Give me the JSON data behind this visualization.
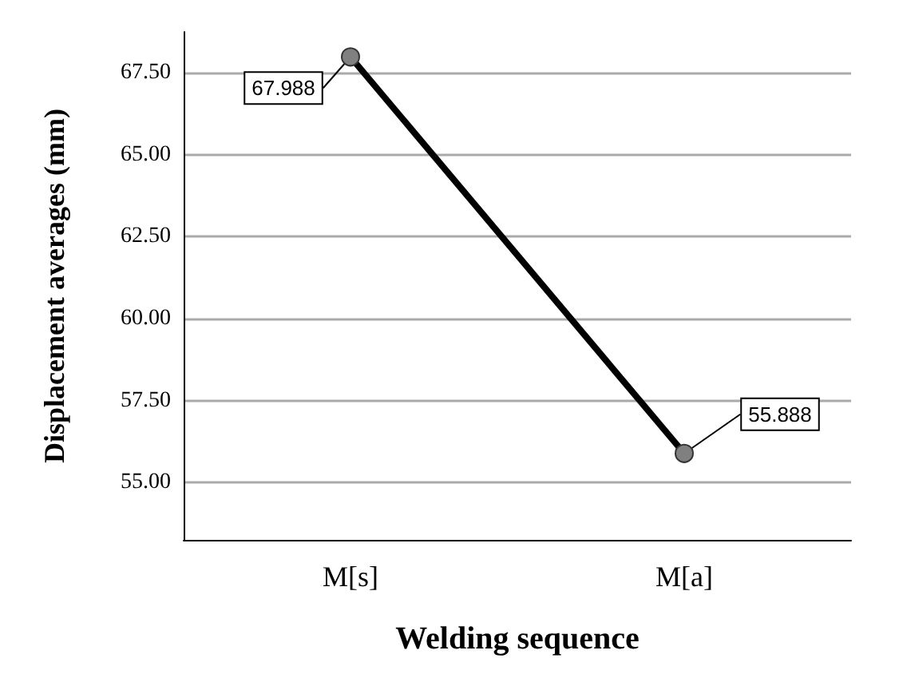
{
  "chart_data": {
    "type": "line",
    "xlabel": "Welding sequence",
    "ylabel": "Displacement averages (mm)",
    "categories": [
      "M[s]",
      "M[a]"
    ],
    "series": [
      {
        "color": "#000000",
        "values": [
          67.988,
          55.888
        ]
      }
    ],
    "ylim": [
      53.25,
      68.75
    ],
    "yticks": [
      {
        "value": 55,
        "label": "55.00"
      },
      {
        "value": 57.5,
        "label": "57.50"
      },
      {
        "value": 60,
        "label": "60.00"
      },
      {
        "value": 62.5,
        "label": "62.50"
      },
      {
        "value": 65,
        "label": "65.00"
      },
      {
        "value": 67.5,
        "label": "67.50"
      }
    ],
    "grid": "y",
    "marker": "circle",
    "line_style": "solid",
    "data_labels": true
  }
}
